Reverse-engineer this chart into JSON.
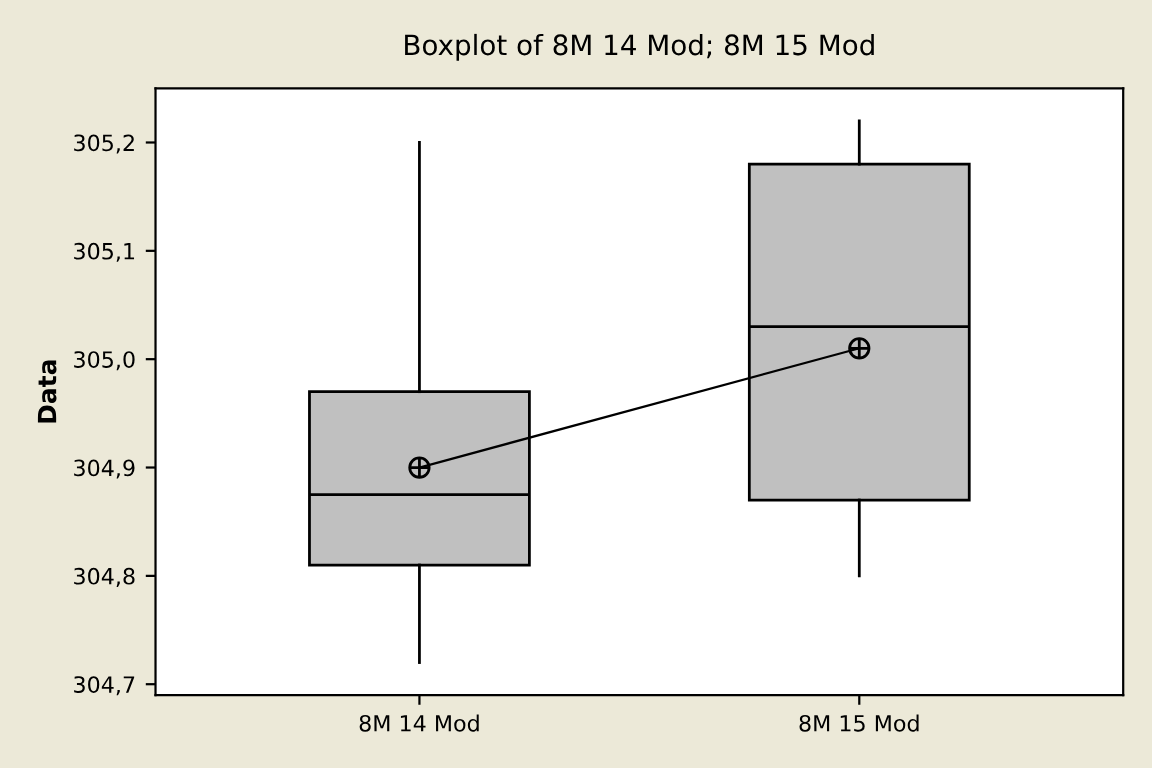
{
  "chart_data": {
    "type": "box",
    "title": "Boxplot of 8M 14 Mod; 8M 15 Mod",
    "ylabel": "Data",
    "categories": [
      "8M 14 Mod",
      "8M 15 Mod"
    ],
    "boxes": [
      {
        "low": 304.72,
        "q1": 304.81,
        "median": 304.875,
        "q3": 304.97,
        "high": 305.2
      },
      {
        "low": 304.8,
        "q1": 304.87,
        "median": 305.03,
        "q3": 305.18,
        "high": 305.22
      }
    ],
    "color": "#c0c0c0",
    "series": [
      {
        "type": "line",
        "color": "#000000",
        "values": [
          304.9,
          305.01
        ]
      }
    ],
    "marker": "circle",
    "ylim": [
      304.69,
      305.25
    ],
    "yticks": [
      {
        "value": 304.7,
        "label": "304,7"
      },
      {
        "value": 304.8,
        "label": "304,8"
      },
      {
        "value": 304.9,
        "label": "304,9"
      },
      {
        "value": 305.0,
        "label": "305,0"
      },
      {
        "value": 305.1,
        "label": "305,1"
      },
      {
        "value": 305.2,
        "label": "305,2"
      }
    ],
    "grid": false,
    "legend": false
  }
}
